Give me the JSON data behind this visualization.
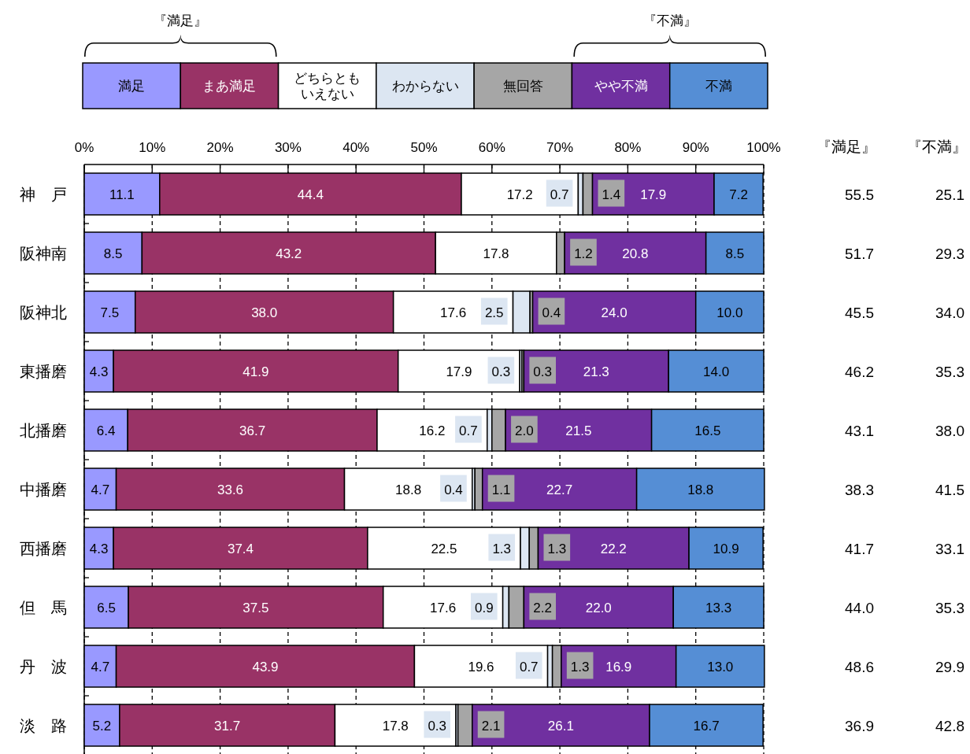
{
  "chart_data": {
    "type": "bar",
    "orientation": "horizontal",
    "stacked": true,
    "categories": [
      "神　戸",
      "阪神南",
      "阪神北",
      "東播磨",
      "北播磨",
      "中播磨",
      "西播磨",
      "但　馬",
      "丹　波",
      "淡　路"
    ],
    "series": [
      {
        "name": "満足",
        "color": "#9999ff",
        "values": [
          11.1,
          8.5,
          7.5,
          4.3,
          6.4,
          4.7,
          4.3,
          6.5,
          4.7,
          5.2
        ],
        "value_labels": [
          "11.1",
          "8.5",
          "7.5",
          "4.3",
          "6.4",
          "4.7",
          "4.3",
          "6.5",
          "4.7",
          "5.2"
        ]
      },
      {
        "name": "まあ満足",
        "color": "#993366",
        "values": [
          44.4,
          43.2,
          38.0,
          41.9,
          36.7,
          33.6,
          37.4,
          37.5,
          43.9,
          31.7
        ],
        "value_labels": [
          "44.4",
          "43.2",
          "38.0",
          "41.9",
          "36.7",
          "33.6",
          "37.4",
          "37.5",
          "43.9",
          "31.7"
        ]
      },
      {
        "name": "どちらともいえない",
        "color": "#ffffff",
        "values": [
          17.2,
          17.8,
          17.6,
          17.9,
          16.2,
          18.8,
          22.5,
          17.6,
          19.6,
          17.8
        ],
        "value_labels": [
          "17.2",
          "17.8",
          "17.6",
          "17.9",
          "16.2",
          "18.8",
          "22.5",
          "17.6",
          "19.6",
          "17.8"
        ]
      },
      {
        "name": "わからない",
        "color": "#dce6f2",
        "values": [
          0.7,
          null,
          2.5,
          0.3,
          0.7,
          0.4,
          1.3,
          0.9,
          0.7,
          0.3
        ],
        "value_labels": [
          "0.7",
          null,
          "2.5",
          "0.3",
          "0.7",
          "0.4",
          "1.3",
          "0.9",
          "0.7",
          "0.3"
        ]
      },
      {
        "name": "無回答",
        "color": "#a6a6a6",
        "values": [
          1.4,
          1.2,
          0.4,
          0.3,
          2.0,
          1.1,
          1.3,
          2.2,
          1.3,
          2.1
        ],
        "value_labels": [
          "1.4",
          "1.2",
          "0.4",
          "0.3",
          "2.0",
          "1.1",
          "1.3",
          "2.2",
          "1.3",
          "2.1"
        ]
      },
      {
        "name": "やや不満",
        "color": "#7030a0",
        "values": [
          17.9,
          20.8,
          24.0,
          21.3,
          21.5,
          22.7,
          22.2,
          22.0,
          16.9,
          26.1
        ],
        "value_labels": [
          "17.9",
          "20.8",
          "24.0",
          "21.3",
          "21.5",
          "22.7",
          "22.2",
          "22.0",
          "16.9",
          "26.1"
        ]
      },
      {
        "name": "不満",
        "color": "#558ed5",
        "values": [
          7.2,
          8.5,
          10.0,
          14.0,
          16.5,
          18.8,
          10.9,
          13.3,
          13.0,
          16.7
        ],
        "value_labels": [
          "7.2",
          "8.5",
          "10.0",
          "14.0",
          "16.5",
          "18.8",
          "10.9",
          "13.3",
          "13.0",
          "16.7"
        ]
      }
    ],
    "xlim": [
      0,
      100
    ],
    "xticks": [
      {
        "value": 0,
        "label": "0%"
      },
      {
        "value": 10,
        "label": "10%"
      },
      {
        "value": 20,
        "label": "20%"
      },
      {
        "value": 30,
        "label": "30%"
      },
      {
        "value": 40,
        "label": "40%"
      },
      {
        "value": 50,
        "label": "50%"
      },
      {
        "value": 60,
        "label": "60%"
      },
      {
        "value": 70,
        "label": "70%"
      },
      {
        "value": 80,
        "label": "80%"
      },
      {
        "value": 90,
        "label": "90%"
      },
      {
        "value": 100,
        "label": "100%"
      }
    ],
    "grid": "x",
    "legend": "top",
    "annotations": [
      "『満足』",
      "『不満』",
      "『満足』",
      "『不満』",
      "55.5",
      "25.1",
      "51.7",
      "29.3",
      "45.5",
      "34.0",
      "46.2",
      "35.3",
      "43.1",
      "38.0",
      "38.3",
      "41.5",
      "41.7",
      "33.1",
      "44.0",
      "35.3",
      "48.6",
      "29.9",
      "36.9",
      "42.8"
    ]
  }
}
